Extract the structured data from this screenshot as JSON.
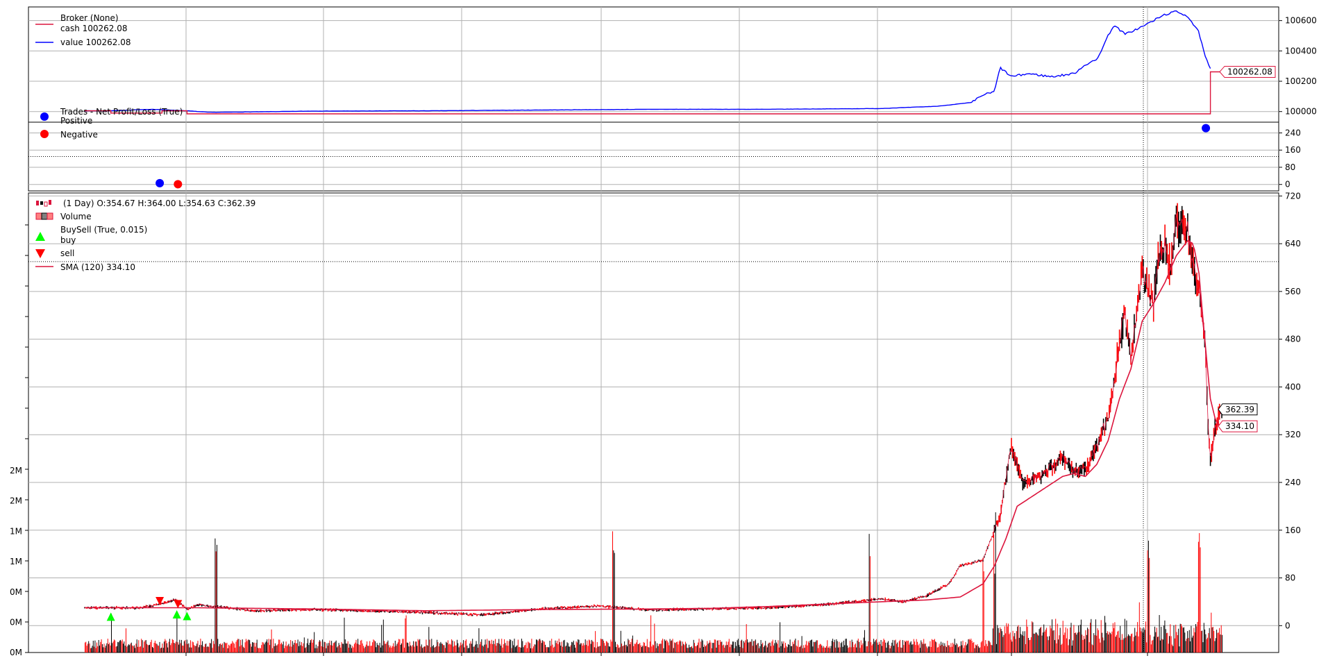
{
  "chart_data": [
    {
      "type": "line",
      "panel": "broker",
      "title": "",
      "legend": {
        "header": "Broker (None)",
        "entries": [
          {
            "label": "cash 100262.08",
            "color": "#dc143c"
          },
          {
            "label": "value 100262.08",
            "color": "#0000ff"
          }
        ],
        "placement": "top-left"
      },
      "yticks": [
        "100600",
        "100400",
        "100200",
        "100000"
      ],
      "ytick_values": [
        100600,
        100400,
        100200,
        100000
      ],
      "ylim": [
        99930,
        100690
      ],
      "xlim": [
        0,
        1000
      ],
      "last_value_tag": "100262.08",
      "last_value": 100262.08,
      "series": [
        {
          "name": "value",
          "color": "#0000ff",
          "x": [
            0,
            20,
            60,
            90,
            110,
            150,
            200,
            300,
            400,
            500,
            600,
            700,
            750,
            780,
            790,
            800,
            805,
            815,
            830,
            850,
            870,
            880,
            890,
            900,
            905,
            915,
            930,
            940,
            950,
            960,
            970,
            980,
            985,
            990
          ],
          "y": [
            100005,
            100005,
            100015,
            100005,
            99995,
            99998,
            100003,
            100005,
            100010,
            100015,
            100015,
            100020,
            100035,
            100060,
            100110,
            100130,
            100290,
            100230,
            100250,
            100230,
            100250,
            100310,
            100340,
            100500,
            100570,
            100510,
            100560,
            100600,
            100640,
            100660,
            100630,
            100520,
            100370,
            100280
          ]
        },
        {
          "name": "cash",
          "color": "#dc143c",
          "x": [
            0,
            23,
            23,
            68,
            68,
            90,
            90,
            990,
            990,
            1000
          ],
          "y": [
            100005,
            100005,
            99990,
            99990,
            100005,
            100005,
            99985,
            99985,
            100262,
            100262
          ]
        }
      ]
    },
    {
      "type": "scatter",
      "panel": "trades",
      "legend": {
        "header": "Trades - Net Profit/Loss (True)",
        "entries": [
          {
            "label": "Positive",
            "color": "#0000ff"
          },
          {
            "label": "Negative",
            "color": "#ff0000"
          }
        ],
        "placement": "top-left"
      },
      "yticks": [
        "240",
        "160",
        "80",
        "0"
      ],
      "ytick_values": [
        240,
        160,
        80,
        0
      ],
      "ylim": [
        -30,
        290
      ],
      "xlim": [
        0,
        1000
      ],
      "reference_line": 130,
      "points": [
        {
          "x": 66,
          "y": 6,
          "sign": "positive",
          "color": "#0000ff"
        },
        {
          "x": 82,
          "y": 1,
          "sign": "negative",
          "color": "#ff0000"
        },
        {
          "x": 986,
          "y": 262,
          "sign": "positive",
          "color": "#0000ff"
        }
      ]
    },
    {
      "type": "candlestick",
      "panel": "price",
      "legend": {
        "header": "(1 Day) O:354.67 H:364.00 L:354.63 C:362.39",
        "entries": [
          {
            "label": "Volume",
            "color": "#ff6060"
          },
          {
            "label": "BuySell (True, 0.015)",
            "color": "#00ff00"
          },
          {
            "label": "buy",
            "color": "#00ff00"
          },
          {
            "label": "sell",
            "color": "#ff0000"
          },
          {
            "label": "SMA (120) 334.10",
            "color": "#dc143c"
          }
        ],
        "placement": "top-left"
      },
      "yticks_right": [
        "720",
        "640",
        "560",
        "480",
        "400",
        "320",
        "240",
        "160",
        "80",
        "0"
      ],
      "ytick_values_right": [
        720,
        640,
        560,
        480,
        400,
        320,
        240,
        160,
        80,
        0
      ],
      "yticks_left": [
        "2M",
        "2M",
        "1M",
        "1M",
        "0M",
        "0M",
        "0M"
      ],
      "ylim": [
        -45,
        725
      ],
      "xlim": [
        0,
        1000
      ],
      "reference_line": 610,
      "last_close_tag": "362.39",
      "last_close": 362.39,
      "sma_tag": "334.10",
      "sma_last": 334.1,
      "close_series": {
        "name": "close",
        "color": "#dc143c",
        "x": [
          0,
          50,
          70,
          80,
          90,
          100,
          150,
          200,
          300,
          350,
          400,
          450,
          500,
          550,
          600,
          650,
          700,
          720,
          740,
          760,
          770,
          790,
          800,
          805,
          808,
          815,
          825,
          840,
          860,
          870,
          880,
          890,
          900,
          905,
          910,
          915,
          920,
          930,
          940,
          945,
          950,
          955,
          960,
          970,
          975,
          980,
          985,
          988,
          990,
          995,
          1000
        ],
        "y": [
          30,
          30,
          38,
          44,
          28,
          35,
          25,
          27,
          22,
          18,
          28,
          33,
          26,
          28,
          30,
          35,
          45,
          40,
          50,
          70,
          100,
          110,
          160,
          180,
          220,
          300,
          240,
          250,
          280,
          260,
          260,
          300,
          350,
          400,
          480,
          520,
          450,
          590,
          540,
          620,
          640,
          600,
          680,
          660,
          600,
          560,
          480,
          330,
          280,
          340,
          362
        ]
      },
      "sma_series": {
        "name": "SMA (120)",
        "color": "#dc143c",
        "x": [
          0,
          100,
          200,
          300,
          400,
          500,
          550,
          600,
          650,
          700,
          740,
          770,
          790,
          800,
          810,
          820,
          840,
          860,
          870,
          880,
          890,
          900,
          910,
          920,
          930,
          940,
          950,
          960,
          970,
          975,
          980,
          985,
          990,
          995,
          1000
        ],
        "y": [
          30,
          30,
          28,
          25,
          27,
          28,
          29,
          32,
          36,
          40,
          43,
          48,
          70,
          100,
          145,
          200,
          225,
          250,
          255,
          250,
          270,
          310,
          380,
          430,
          510,
          540,
          575,
          620,
          645,
          640,
          590,
          480,
          380,
          340,
          334
        ]
      },
      "buy_markers": [
        {
          "x": 23,
          "y": 15
        },
        {
          "x": 81,
          "y": 19
        },
        {
          "x": 90,
          "y": 16
        }
      ],
      "sell_markers": [
        {
          "x": 66,
          "y": 41
        },
        {
          "x": 82,
          "y": 36
        }
      ],
      "volume_spikes": [
        {
          "x": 115,
          "label": ""
        },
        {
          "x": 465,
          "label": ""
        },
        {
          "x": 690,
          "label": ""
        },
        {
          "x": 790,
          "label": ""
        },
        {
          "x": 800,
          "label": ""
        },
        {
          "x": 935,
          "label": ""
        },
        {
          "x": 980,
          "label": ""
        }
      ]
    }
  ]
}
